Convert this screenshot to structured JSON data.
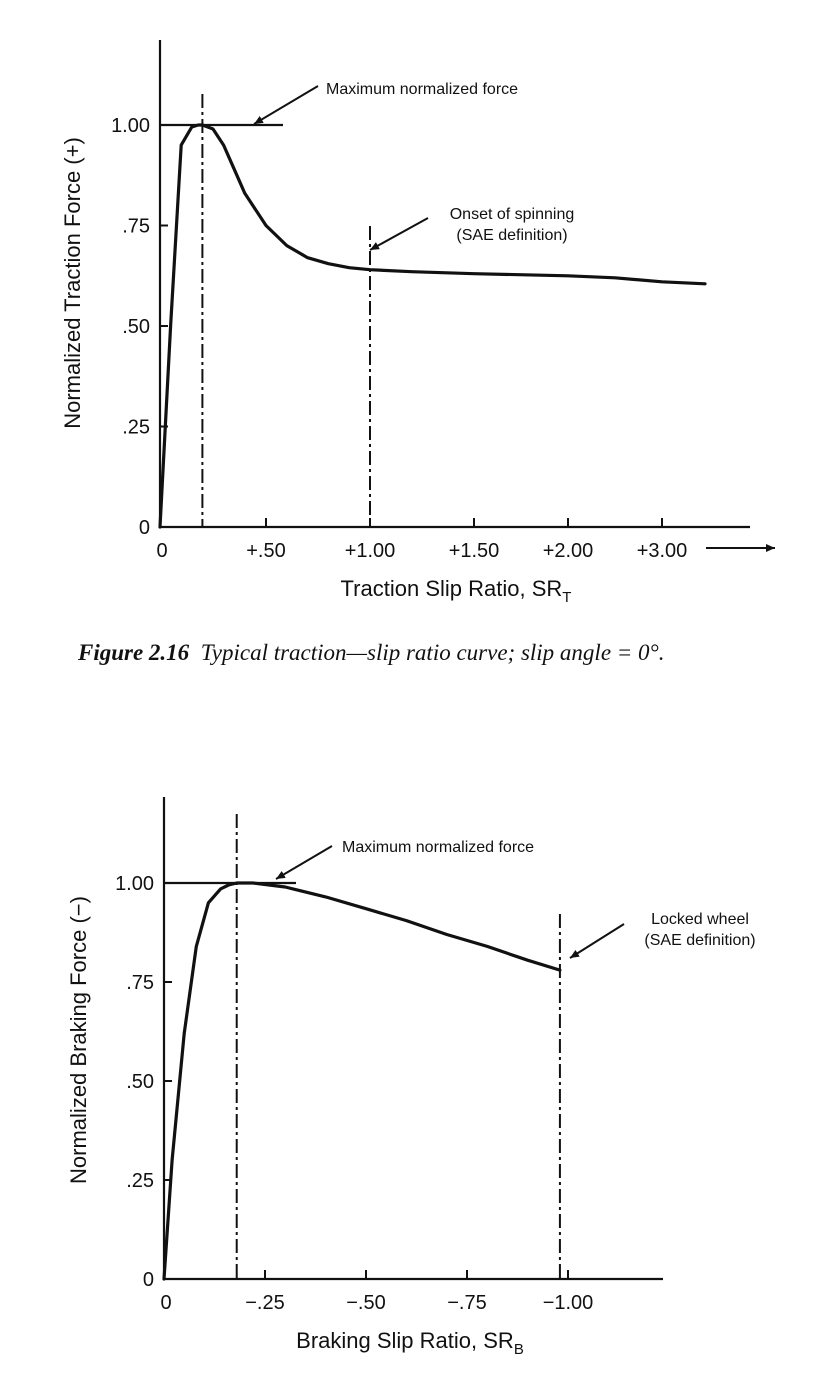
{
  "chart_data": [
    {
      "type": "line",
      "ylabel": "Normalized Traction Force (+)",
      "xlabel": "Traction Slip Ratio, SR",
      "xlabel_sub": "T",
      "x_tick_labels": [
        "0",
        "+.50",
        "+1.00",
        "+1.50",
        "+2.00",
        "+3.00"
      ],
      "y_tick_labels": [
        "0",
        ".25",
        ".50",
        ".75",
        "1.00"
      ],
      "ylim": [
        0,
        1.0
      ],
      "grid": false,
      "series": [
        {
          "x": [
            0,
            0.05,
            0.1,
            0.15,
            0.18,
            0.2,
            0.25,
            0.3,
            0.35,
            0.4,
            0.5,
            0.6,
            0.7,
            0.8,
            0.9,
            1.0,
            1.2,
            1.5,
            2.0,
            2.5,
            3.0,
            3.5
          ],
          "y": [
            0,
            0.5,
            0.95,
            0.995,
            1.0,
            1.0,
            0.99,
            0.95,
            0.89,
            0.83,
            0.75,
            0.7,
            0.67,
            0.655,
            0.645,
            0.64,
            0.635,
            0.63,
            0.625,
            0.62,
            0.61,
            0.605
          ]
        }
      ],
      "vertical_markers": [
        0.2,
        1.0
      ],
      "annotations": [
        {
          "text": "Maximum normalized force"
        },
        {
          "text": "Onset of spinning",
          "text2": "(SAE definition)"
        }
      ]
    },
    {
      "type": "line",
      "ylabel": "Normalized Braking Force (−)",
      "xlabel": "Braking Slip Ratio, SR",
      "xlabel_sub": "B",
      "x_tick_labels": [
        "0",
        "−.25",
        "−.50",
        "−.75",
        "−1.00"
      ],
      "y_tick_labels": [
        "0",
        ".25",
        ".50",
        ".75",
        "1.00"
      ],
      "ylim": [
        0,
        1.0
      ],
      "xlim": [
        0,
        -1.0
      ],
      "grid": false,
      "series": [
        {
          "x": [
            0,
            -0.02,
            -0.05,
            -0.08,
            -0.11,
            -0.14,
            -0.16,
            -0.18,
            -0.22,
            -0.3,
            -0.4,
            -0.5,
            -0.6,
            -0.7,
            -0.8,
            -0.9,
            -0.98
          ],
          "y": [
            0,
            0.3,
            0.62,
            0.84,
            0.95,
            0.985,
            0.995,
            1.0,
            1.0,
            0.99,
            0.965,
            0.935,
            0.905,
            0.87,
            0.84,
            0.805,
            0.78
          ]
        }
      ],
      "vertical_markers": [
        -0.18,
        -0.98
      ],
      "annotations": [
        {
          "text": "Maximum normalized force"
        },
        {
          "text": "Locked wheel",
          "text2": "(SAE definition)"
        }
      ]
    }
  ],
  "caption": {
    "label": "Figure 2.16",
    "text": "Typical traction—slip ratio curve; slip angle = 0°."
  }
}
